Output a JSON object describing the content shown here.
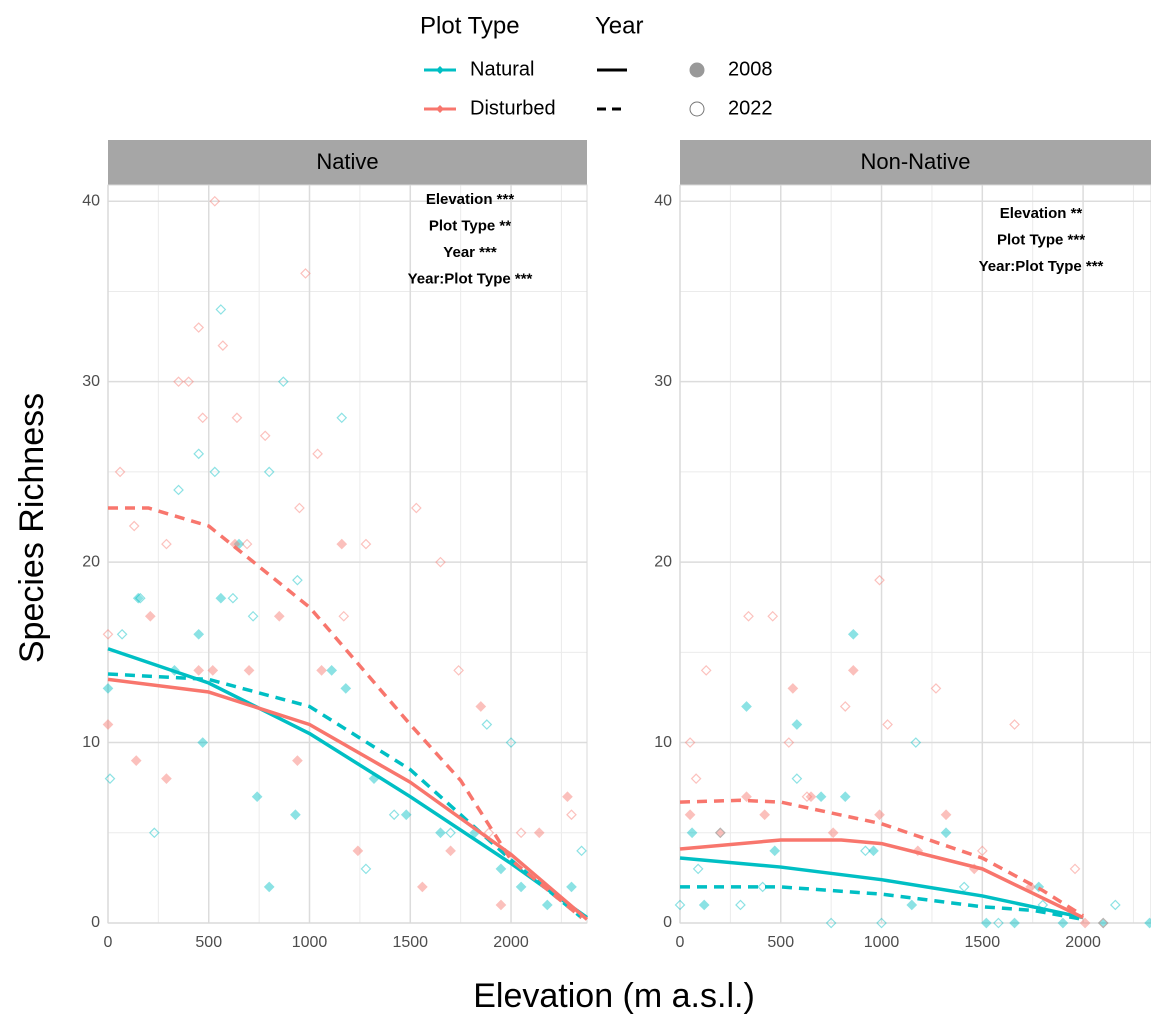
{
  "legend": {
    "plot_type_title": "Plot Type",
    "year_title": "Year",
    "plot_types": [
      {
        "name": "Natural",
        "color": "#00BFC4"
      },
      {
        "name": "Disturbed",
        "color": "#F8766D"
      }
    ],
    "years": [
      {
        "name": "2008",
        "dashed": false,
        "marker": "filled"
      },
      {
        "name": "2022",
        "dashed": true,
        "marker": "open"
      }
    ]
  },
  "x_label": "Elevation (m a.s.l.)",
  "y_label": "Species Richness",
  "chart_data": [
    {
      "type": "line",
      "title": "Native",
      "annotations": [
        "Elevation ***",
        "Plot Type **",
        "Year ***",
        "Year:Plot Type ***"
      ],
      "xlim": [
        0,
        2377
      ],
      "ylim": [
        0,
        40.9
      ],
      "xticks": [
        0,
        500,
        1000,
        1500,
        2000
      ],
      "yticks": [
        0,
        10,
        20,
        30,
        40
      ],
      "x_minor_ticks": [
        250,
        750,
        1250,
        1750,
        2250
      ],
      "y_minor_ticks": [
        5,
        15,
        25,
        35
      ],
      "grid": true,
      "series": [
        {
          "name": "Natural",
          "year": "2008",
          "color": "#00BFC4",
          "dashed": false,
          "x": [
            0,
            500,
            1000,
            1500,
            2000,
            2377
          ],
          "values": [
            15.2,
            13.3,
            10.5,
            7,
            3.3,
            0.3
          ],
          "points_x": [
            0,
            150,
            330,
            450,
            470,
            560,
            650,
            740,
            800,
            930,
            1110,
            1180,
            1320,
            1480,
            1650,
            1820,
            1950,
            2050,
            2180,
            2300
          ],
          "points_values": [
            13,
            18,
            14,
            16,
            10,
            18,
            21,
            7,
            2,
            6,
            14,
            13,
            8,
            6,
            5,
            5,
            3,
            2,
            1,
            2
          ]
        },
        {
          "name": "Natural",
          "year": "2022",
          "color": "#00BFC4",
          "dashed": true,
          "x": [
            0,
            500,
            1000,
            1500,
            2000,
            2350
          ],
          "values": [
            13.8,
            13.5,
            12,
            8.5,
            3.5,
            0.3
          ],
          "points_x": [
            10,
            70,
            160,
            230,
            350,
            450,
            530,
            560,
            620,
            720,
            800,
            870,
            940,
            1160,
            1280,
            1420,
            1700,
            1880,
            2000,
            2350
          ],
          "points_values": [
            8,
            16,
            18,
            5,
            24,
            26,
            25,
            34,
            18,
            17,
            25,
            30,
            19,
            28,
            3,
            6,
            5,
            11,
            10,
            4
          ]
        },
        {
          "name": "Disturbed",
          "year": "2008",
          "color": "#F8766D",
          "dashed": false,
          "x": [
            0,
            500,
            1000,
            1500,
            2000,
            2377
          ],
          "values": [
            13.5,
            12.8,
            11,
            7.8,
            3.8,
            0.2
          ],
          "points_x": [
            0,
            140,
            210,
            290,
            450,
            520,
            630,
            700,
            850,
            940,
            1060,
            1160,
            1240,
            1560,
            1700,
            1850,
            1950,
            2140,
            2280
          ],
          "points_values": [
            11,
            9,
            17,
            8,
            14,
            14,
            21,
            14,
            17,
            9,
            14,
            21,
            4,
            2,
            4,
            12,
            1,
            5,
            7
          ]
        },
        {
          "name": "Disturbed",
          "year": "2022",
          "color": "#F8766D",
          "dashed": true,
          "x": [
            0,
            200,
            500,
            1000,
            1500,
            1750,
            2000,
            2350
          ],
          "values": [
            23,
            23,
            22,
            17.5,
            11,
            7.9,
            3.5,
            0.3
          ],
          "points_x": [
            0,
            60,
            130,
            290,
            350,
            400,
            450,
            470,
            530,
            570,
            640,
            690,
            780,
            950,
            980,
            1040,
            1170,
            1280,
            1530,
            1650,
            1740,
            1890,
            2050,
            2300
          ],
          "points_values": [
            16,
            25,
            22,
            21,
            30,
            30,
            33,
            28,
            40,
            32,
            28,
            21,
            27,
            23,
            36,
            26,
            17,
            21,
            23,
            20,
            14,
            5,
            5,
            6
          ]
        }
      ]
    },
    {
      "type": "line",
      "title": "Non-Native",
      "annotations": [
        "Elevation **",
        "Plot Type ***",
        "Year:Plot Type ***"
      ],
      "xlim": [
        0,
        2337
      ],
      "ylim": [
        0,
        40.9
      ],
      "xticks": [
        0,
        500,
        1000,
        1500,
        2000
      ],
      "yticks": [
        0,
        10,
        20,
        30,
        40
      ],
      "x_minor_ticks": [
        250,
        750,
        1250,
        1750,
        2250
      ],
      "y_minor_ticks": [
        5,
        15,
        25,
        35
      ],
      "grid": true,
      "series": [
        {
          "name": "Natural",
          "year": "2008",
          "color": "#00BFC4",
          "dashed": false,
          "x": [
            0,
            500,
            1000,
            1500,
            2000
          ],
          "values": [
            3.6,
            3.1,
            2.4,
            1.5,
            0.3
          ],
          "points_x": [
            60,
            120,
            330,
            470,
            580,
            700,
            820,
            860,
            960,
            1150,
            1320,
            1520,
            1660,
            1780,
            1900,
            2100,
            2330
          ],
          "points_values": [
            5,
            1,
            12,
            4,
            11,
            7,
            7,
            16,
            4,
            1,
            5,
            0,
            0,
            2,
            0,
            0,
            0
          ]
        },
        {
          "name": "Natural",
          "year": "2022",
          "color": "#00BFC4",
          "dashed": true,
          "x": [
            0,
            500,
            1000,
            1500,
            1750,
            2000
          ],
          "values": [
            2,
            2,
            1.6,
            0.9,
            0.7,
            0.2
          ],
          "points_x": [
            0,
            90,
            200,
            300,
            410,
            580,
            750,
            920,
            1000,
            1170,
            1410,
            1580,
            1800,
            2160
          ],
          "points_values": [
            1,
            3,
            5,
            1,
            2,
            8,
            0,
            4,
            0,
            10,
            2,
            0,
            1,
            1
          ]
        },
        {
          "name": "Disturbed",
          "year": "2008",
          "color": "#F8766D",
          "dashed": false,
          "x": [
            0,
            500,
            800,
            1000,
            1500,
            2000
          ],
          "values": [
            4.1,
            4.6,
            4.6,
            4.4,
            3,
            0.3
          ],
          "points_x": [
            50,
            200,
            330,
            420,
            560,
            650,
            760,
            860,
            990,
            1180,
            1320,
            1460,
            1740,
            2010
          ],
          "points_values": [
            6,
            5,
            7,
            6,
            13,
            7,
            5,
            14,
            6,
            4,
            6,
            3,
            2,
            0
          ]
        },
        {
          "name": "Disturbed",
          "year": "2022",
          "color": "#F8766D",
          "dashed": true,
          "x": [
            0,
            300,
            500,
            1000,
            1500,
            1800,
            2000
          ],
          "values": [
            6.7,
            6.8,
            6.7,
            5.5,
            3.6,
            1.8,
            0.4
          ],
          "points_x": [
            50,
            80,
            130,
            340,
            460,
            540,
            630,
            820,
            990,
            1030,
            1270,
            1500,
            1660,
            1960,
            2100
          ],
          "points_values": [
            10,
            8,
            14,
            17,
            17,
            10,
            7,
            12,
            19,
            11,
            13,
            4,
            11,
            3,
            0
          ]
        }
      ]
    }
  ]
}
